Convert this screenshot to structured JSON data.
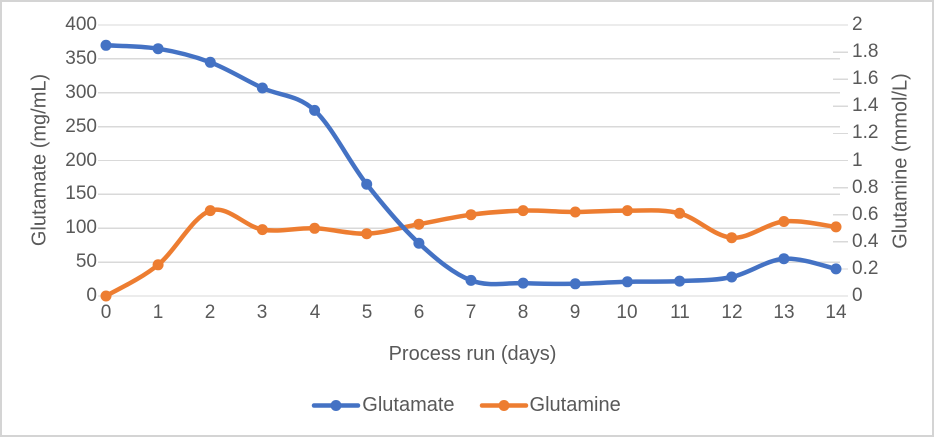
{
  "colors": {
    "background": "#ffffff",
    "frame_border": "#d4d4d4",
    "gridline": "#d9d9d9",
    "axis_text": "#595959",
    "glutamate_blue": "#4472C4",
    "glutamine_orange": "#ED7D31"
  },
  "chart_data": {
    "type": "line",
    "title": "",
    "xlabel": "Process run (days)",
    "x": [
      0,
      1,
      2,
      3,
      4,
      5,
      6,
      7,
      8,
      9,
      10,
      11,
      12,
      13,
      14
    ],
    "x_tick_labels": [
      "0",
      "1",
      "2",
      "3",
      "4",
      "5",
      "6",
      "7",
      "8",
      "9",
      "10",
      "11",
      "12",
      "13",
      "14"
    ],
    "left_axis": {
      "label": "Glutamate (mg/mL)",
      "min": 0,
      "max": 400,
      "tick_step": 50,
      "tick_labels": [
        "0",
        "50",
        "100",
        "150",
        "200",
        "250",
        "300",
        "350",
        "400"
      ]
    },
    "right_axis": {
      "label": "Glutamine (mmol/L)",
      "min": 0,
      "max": 2,
      "tick_step": 0.2,
      "tick_labels": [
        "0",
        "0.2",
        "0.4",
        "0.6",
        "0.8",
        "1",
        "1.2",
        "1.4",
        "1.6",
        "1.8",
        "2"
      ]
    },
    "grid": "horizontal gridlines at left-axis 50-unit steps",
    "legend_position": "bottom-center",
    "series": [
      {
        "name": "Glutamate",
        "axis": "left",
        "color": "#4472C4",
        "marker": "circle",
        "smooth": true,
        "values": [
          370,
          365,
          345,
          307,
          274,
          165,
          78,
          23,
          19,
          18,
          21,
          22,
          28,
          55,
          40
        ]
      },
      {
        "name": "Glutamine",
        "axis": "right",
        "color": "#ED7D31",
        "marker": "circle",
        "smooth": true,
        "values": [
          0,
          0.23,
          0.63,
          0.49,
          0.5,
          0.46,
          0.53,
          0.6,
          0.63,
          0.62,
          0.63,
          0.61,
          0.43,
          0.55,
          0.51
        ]
      }
    ]
  }
}
